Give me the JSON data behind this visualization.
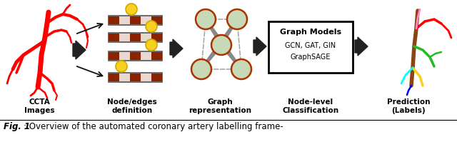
{
  "fig_caption_bold": "Fig. 1",
  "fig_caption_rest": ": Overview of the automated coronary artery labelling frame-",
  "labels": [
    "CCTA\nImages",
    "Node/edges\ndefinition",
    "Graph\nrepresentation",
    "Node-level\nClassification",
    "Prediction\n(Labels)"
  ],
  "box_text_line1": "Graph Models",
  "box_text_line2": "GCN, GAT, GIN",
  "box_text_line3": "GraphSAGE",
  "bg_color": "#ffffff",
  "node_fill": "#c8d9b8",
  "node_edge": "#aa3300",
  "edge_color_thick": "#888888",
  "edge_color_dashed": "#aaaaaa",
  "bar_fill": "#8b2200",
  "bar_light": "#ddcccc",
  "bar_outline": "#555555",
  "yellow_fill": "#f8d020",
  "yellow_edge": "#ccaa00",
  "arrow_fill": "#555555",
  "thin_arrow_color": "#111111",
  "box_edge": "#000000",
  "caption_color": "#111111",
  "label_fontsize": 7.5,
  "caption_fontsize": 8.5
}
